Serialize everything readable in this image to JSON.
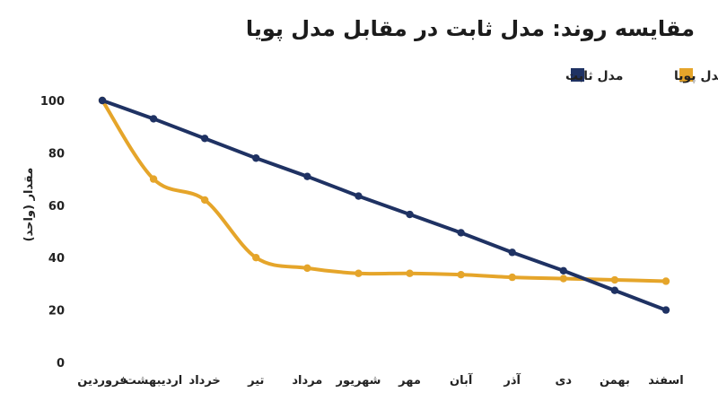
{
  "chart_data": {
    "type": "line",
    "title": "مقایسه روند: مدل ثابت در مقابل مدل پویا",
    "ylabel": "مقدار (واحد)",
    "xlabel": "",
    "ylim": [
      0,
      100
    ],
    "yticks": [
      "0",
      "20",
      "40",
      "60",
      "80",
      "100"
    ],
    "categories": [
      "فروردین",
      "اردیبهشت",
      "خرداد",
      "تیر",
      "مرداد",
      "شهریور",
      "مهر",
      "آبان",
      "آذر",
      "دی",
      "بهمن",
      "اسفند"
    ],
    "grid": false,
    "legend_position": "top-right",
    "series": [
      {
        "name": "مدل پویا",
        "color": "#E5A52A",
        "smooth": true,
        "values": [
          100,
          70,
          62,
          40,
          36,
          34,
          34,
          33.5,
          32.5,
          32,
          31.5,
          31
        ]
      },
      {
        "name": "مدل ثابت",
        "color": "#1F3263",
        "smooth": false,
        "values": [
          100,
          93,
          85.5,
          78,
          71,
          63.5,
          56.5,
          49.5,
          42,
          35,
          27.5,
          20
        ]
      }
    ]
  }
}
